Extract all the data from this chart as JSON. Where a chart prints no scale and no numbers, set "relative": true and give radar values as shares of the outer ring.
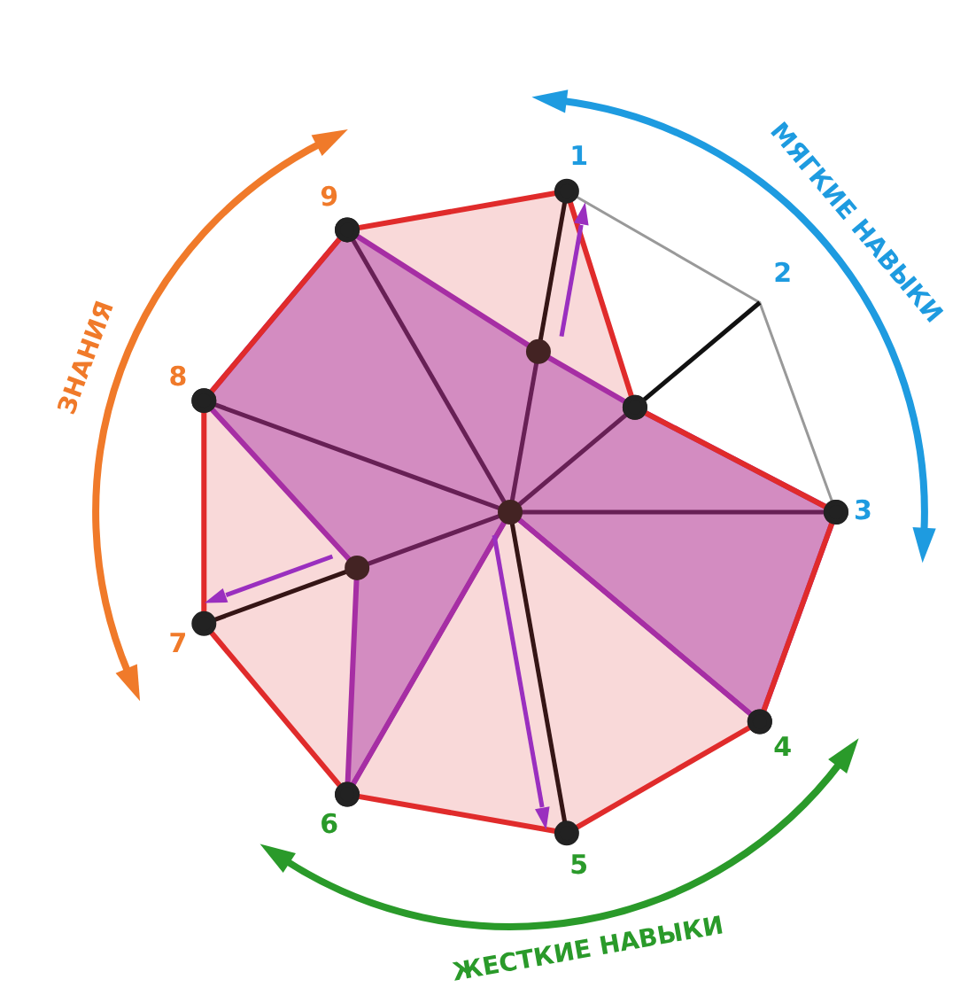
{
  "chart_data": {
    "type": "radar",
    "relative": true,
    "grid": true,
    "marker": "circle",
    "categories": [
      "1",
      "2",
      "3",
      "4",
      "5",
      "6",
      "7",
      "8",
      "9"
    ],
    "series": [
      {
        "color": "#e02b2b",
        "values": [
          1,
          0.5,
          1,
          1,
          1,
          1,
          1,
          1,
          1
        ]
      },
      {
        "color": "#9a2fbf",
        "values": [
          0.5,
          0.5,
          1,
          1,
          0,
          1,
          0.5,
          1,
          1
        ]
      }
    ],
    "annotations": [
      "МЯГКИЕ НАВЫКИ",
      "ЖЕСТКИЕ НАВЫКИ",
      "ЗНАНИЯ"
    ]
  }
}
